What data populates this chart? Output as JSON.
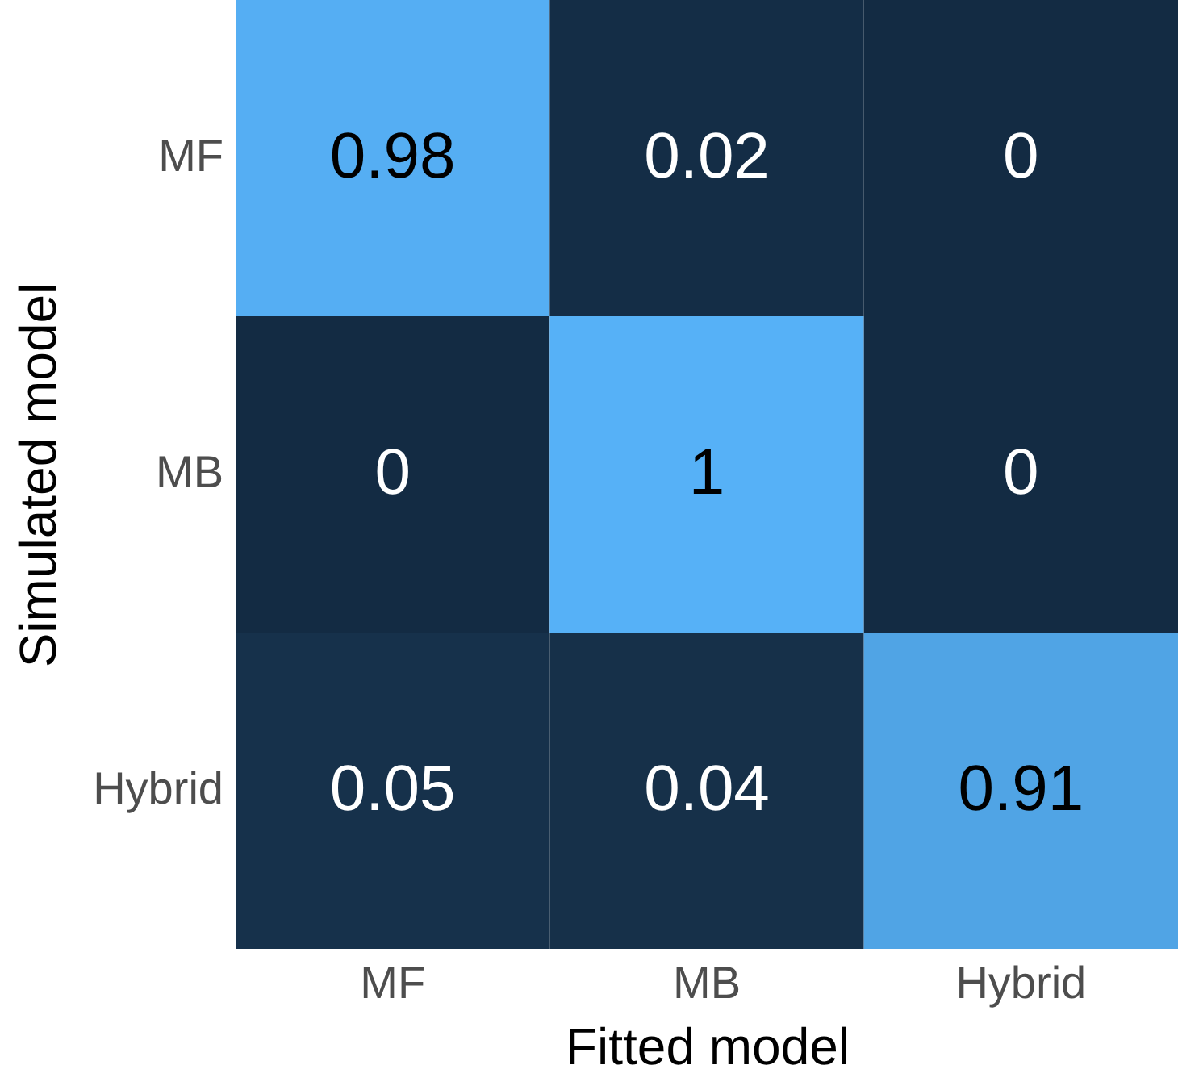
{
  "chart_data": {
    "type": "heatmap",
    "xlabel": "Fitted model",
    "ylabel": "Simulated model",
    "categories": [
      "MF",
      "MB",
      "Hybrid"
    ],
    "y_categories": [
      "MF",
      "MB",
      "Hybrid"
    ],
    "cells": [
      [
        0.98,
        0.02,
        0
      ],
      [
        0,
        1,
        0
      ],
      [
        0.05,
        0.04,
        0.91
      ]
    ],
    "data_labels": true
  }
}
